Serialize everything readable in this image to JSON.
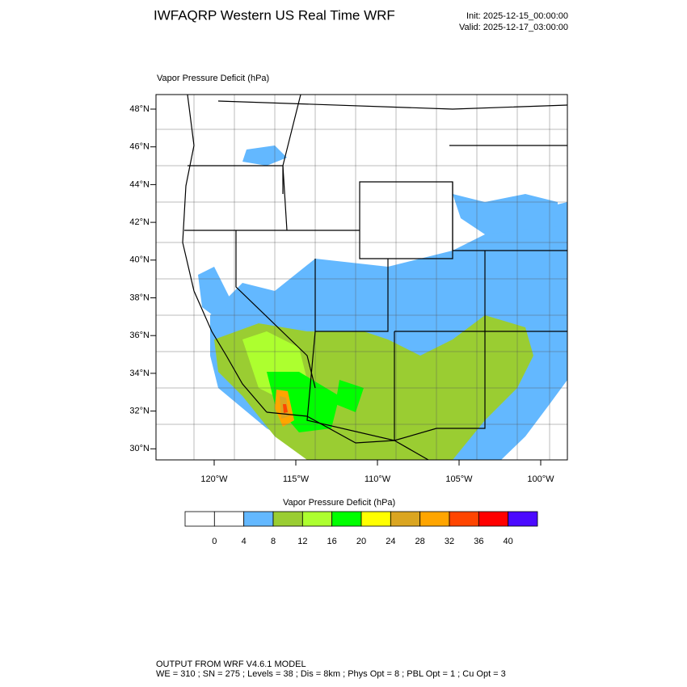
{
  "header": {
    "title": "IWFAQRP Western US Real Time WRF",
    "init": "Init: 2025-12-15_00:00:00",
    "valid": "Valid: 2025-12-17_03:00:00"
  },
  "map": {
    "subtitle": "Vapor Pressure Deficit   (hPa)",
    "lat_labels": [
      "48°N",
      "46°N",
      "44°N",
      "42°N",
      "40°N",
      "38°N",
      "36°N",
      "34°N",
      "32°N",
      "30°N"
    ],
    "lon_labels": [
      "120°W",
      "115°W",
      "110°W",
      "105°W",
      "100°W"
    ]
  },
  "colorbar": {
    "title": "Vapor Pressure Deficit  (hPa)",
    "levels": [
      0,
      4,
      8,
      12,
      16,
      20,
      24,
      28,
      32,
      36,
      40
    ],
    "colors": [
      "#ffffff",
      "#ffffff",
      "#63b8ff",
      "#9acd32",
      "#adff2f",
      "#00ff00",
      "#ffff00",
      "#daa520",
      "#ffa500",
      "#ff4500",
      "#ff0000",
      "#4b0aff"
    ]
  },
  "footer": {
    "line1": "OUTPUT FROM WRF V4.6.1 MODEL",
    "line2": "WE = 310 ; SN = 275 ; Levels = 38 ; Dis = 8km ; Phys Opt = 8 ; PBL Opt = 1 ; Cu Opt = 3"
  }
}
